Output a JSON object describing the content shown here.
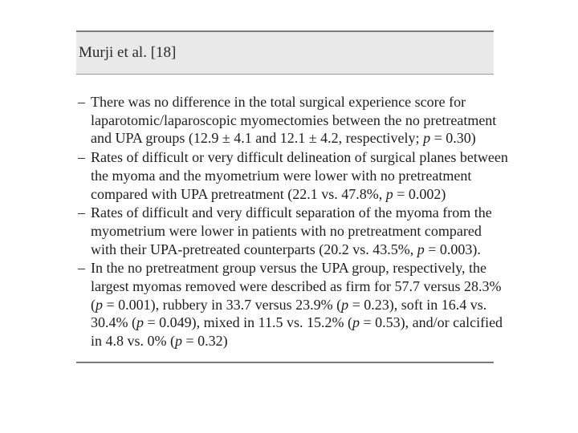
{
  "header": {
    "title": "Murji et al. [18]"
  },
  "bullet_marker": "–",
  "bullets": [
    {
      "lines": [
        "There was no difference in the total surgical experience score for",
        "laparotomic/laparoscopic myomectomies between the no pretreatment",
        "and UPA groups (12.9 ± 4.1 and 12.1 ± 4.2, respectively; p = 0.30)"
      ]
    },
    {
      "lines": [
        "Rates of difficult or very difficult delineation of surgical planes between",
        "the myoma and the myometrium were lower with no pretreatment",
        "compared with UPA pretreatment (22.1 vs. 47.8%, p = 0.002)"
      ]
    },
    {
      "lines": [
        "Rates of difficult and very difficult separation of the myoma from the",
        "myometrium were lower in patients with no pretreatment compared",
        "with their UPA-pretreated counterparts (20.2 vs. 43.5%, p = 0.003)."
      ]
    },
    {
      "lines": [
        "In the no pretreatment group versus the UPA group, respectively, the",
        "largest myomas removed were described as firm for 57.7 versus 28.3%",
        "(p = 0.001), rubbery in 33.7 versus 23.9% (p = 0.23), soft in 16.4 vs.",
        "30.4% (p = 0.049), mixed in 11.5 vs. 15.2% (p = 0.53), and/or calcified",
        "in 4.8 vs. 0% (p = 0.32)"
      ]
    }
  ]
}
